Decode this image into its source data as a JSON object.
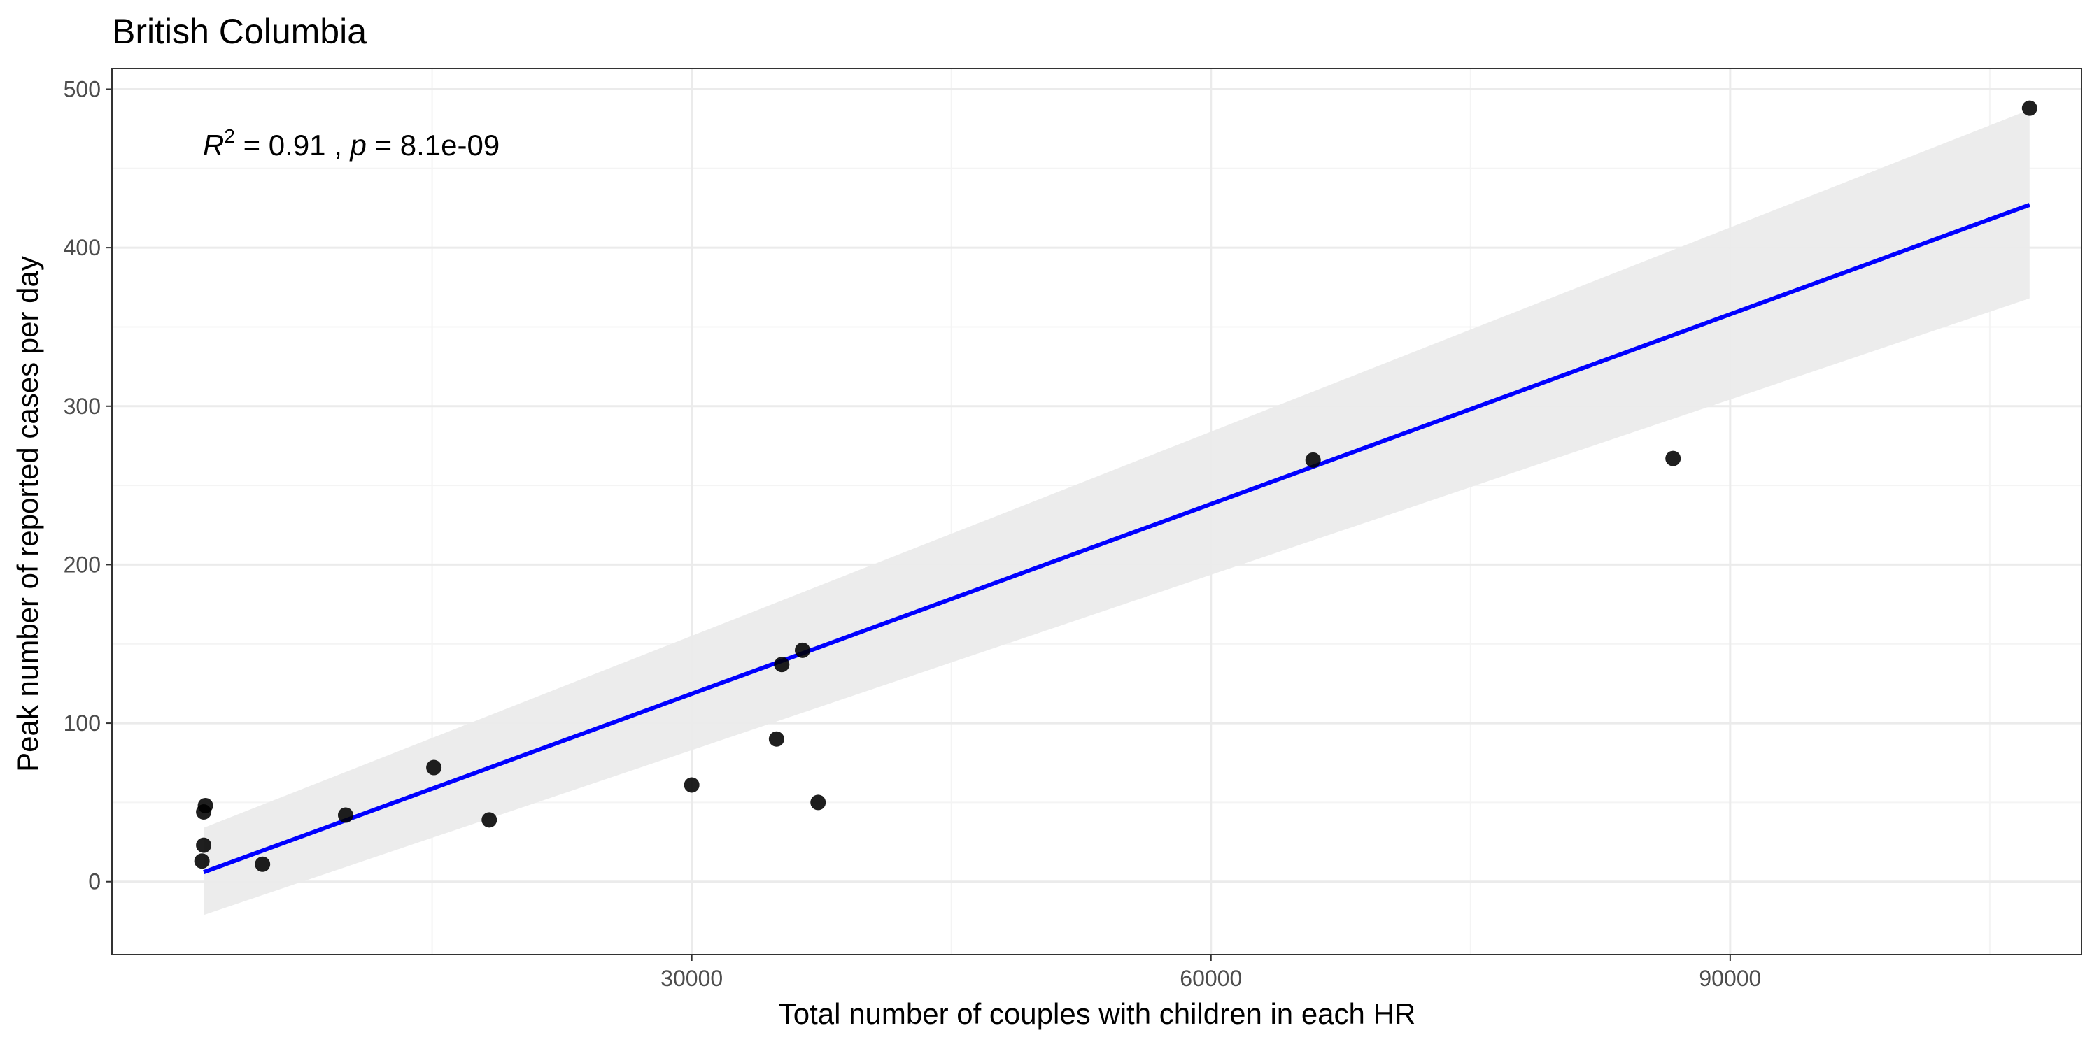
{
  "chart_data": {
    "type": "scatter",
    "title": "British Columbia",
    "xlabel": "Total number of couples with children in each HR",
    "ylabel": "Peak number of reported cases per day",
    "annotation": {
      "r2_symbol": "R",
      "r2_exponent": "2",
      "r2_text": " = 0.91 , ",
      "p_symbol": "p",
      "p_text": " = 8.1e-09"
    },
    "xlim": [
      -3500,
      110300
    ],
    "ylim": [
      -46,
      513
    ],
    "x_ticks": [
      30000,
      60000,
      90000
    ],
    "x_tick_labels": [
      "30000",
      "60000",
      "90000"
    ],
    "y_ticks": [
      0,
      100,
      200,
      300,
      400,
      500
    ],
    "y_tick_labels": [
      "0",
      "100",
      "200",
      "300",
      "400",
      "500"
    ],
    "grid": true,
    "points": [
      {
        "x": 1700,
        "y": 13
      },
      {
        "x": 1800,
        "y": 23
      },
      {
        "x": 1800,
        "y": 44
      },
      {
        "x": 1900,
        "y": 48
      },
      {
        "x": 5200,
        "y": 11
      },
      {
        "x": 10000,
        "y": 42
      },
      {
        "x": 15100,
        "y": 72
      },
      {
        "x": 18300,
        "y": 39
      },
      {
        "x": 30000,
        "y": 61
      },
      {
        "x": 34900,
        "y": 90
      },
      {
        "x": 35200,
        "y": 137
      },
      {
        "x": 36400,
        "y": 146
      },
      {
        "x": 37300,
        "y": 50
      },
      {
        "x": 65900,
        "y": 266
      },
      {
        "x": 86700,
        "y": 267
      },
      {
        "x": 107300,
        "y": 488
      }
    ],
    "fit_line": {
      "x": [
        1800,
        107300
      ],
      "y": [
        6,
        427
      ]
    },
    "confidence_band": {
      "x": [
        1800,
        107300
      ],
      "upper": [
        34,
        487
      ],
      "lower": [
        -21,
        368
      ]
    },
    "colors": {
      "points": "#000000",
      "fit_line": "#0000ff",
      "band": "#ebebeb",
      "grid_major": "#ebebeb",
      "grid_minor": "#f4f4f4",
      "panel_border": "#333333"
    }
  }
}
